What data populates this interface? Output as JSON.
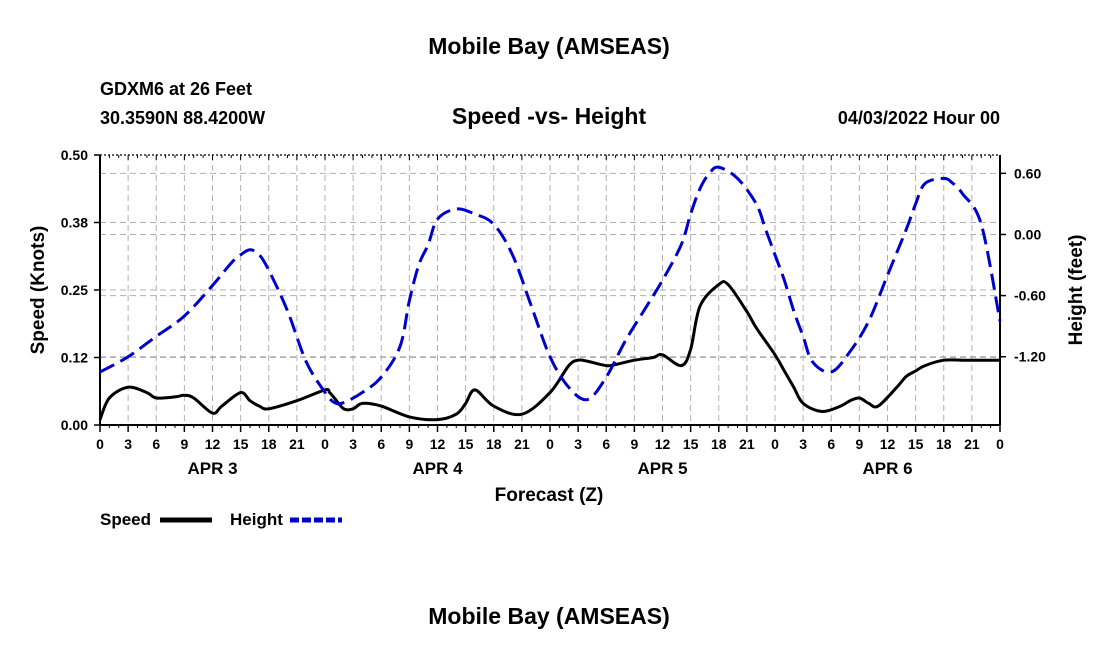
{
  "header": {
    "main_title": "Mobile Bay (AMSEAS)",
    "station": "GDXM6 at 26 Feet",
    "coords": "30.3590N  88.4200W",
    "plot_title": "Speed -vs- Height",
    "run_time": "04/03/2022 Hour 00"
  },
  "footer": {
    "repeat_title": "Mobile Bay (AMSEAS)"
  },
  "chart_data": {
    "type": "line",
    "xlabel": "Forecast (Z)",
    "ylabel": "Speed (Knots)",
    "y2label": "Height (feet)",
    "xlim": [
      0,
      96
    ],
    "ylim": [
      0,
      0.5
    ],
    "y2lim": [
      -1.87,
      0.78
    ],
    "x_tick_step": 3,
    "x_tick_labels": [
      "0",
      "3",
      "6",
      "9",
      "12",
      "15",
      "18",
      "21",
      "0",
      "3",
      "6",
      "9",
      "12",
      "15",
      "18",
      "21",
      "0",
      "3",
      "6",
      "9",
      "12",
      "15",
      "18",
      "21",
      "0",
      "3",
      "6",
      "9",
      "12",
      "15",
      "18",
      "21",
      "0"
    ],
    "y_ticks": [
      "0.00",
      "0.12",
      "0.25",
      "0.38",
      "0.50"
    ],
    "y_tick_values": [
      0,
      0.125,
      0.25,
      0.375,
      0.5
    ],
    "y2_ticks": [
      "-1.20",
      "-0.60",
      "0.00",
      "0.60"
    ],
    "y2_tick_values": [
      -1.2,
      -0.6,
      0.0,
      0.6
    ],
    "day_labels": [
      {
        "label": "APR 3",
        "x": 12
      },
      {
        "label": "APR 4",
        "x": 36
      },
      {
        "label": "APR 5",
        "x": 60
      },
      {
        "label": "APR 6",
        "x": 84
      }
    ],
    "grid": true,
    "series": [
      {
        "name": "Speed",
        "axis": "left",
        "color": "#000000",
        "style": "solid",
        "x": [
          0,
          1,
          3,
          5,
          6,
          8,
          9,
          10,
          12,
          13,
          15,
          16,
          17,
          18,
          21,
          24,
          24.5,
          25,
          26,
          27,
          28,
          30,
          33,
          36,
          38,
          39,
          40,
          42,
          45,
          48,
          50,
          51,
          52,
          54,
          55,
          57,
          59,
          60,
          62,
          63,
          64,
          66,
          67,
          69,
          70,
          72,
          73,
          74,
          75,
          77,
          79,
          80,
          81,
          82,
          83,
          85,
          86,
          87,
          88,
          90,
          92,
          93,
          94,
          95,
          96
        ],
        "values": [
          0.01,
          0.05,
          0.07,
          0.06,
          0.05,
          0.052,
          0.055,
          0.05,
          0.022,
          0.035,
          0.06,
          0.045,
          0.035,
          0.03,
          0.045,
          0.065,
          0.06,
          0.05,
          0.03,
          0.03,
          0.04,
          0.035,
          0.015,
          0.01,
          0.02,
          0.04,
          0.065,
          0.035,
          0.02,
          0.06,
          0.11,
          0.12,
          0.118,
          0.11,
          0.112,
          0.12,
          0.125,
          0.13,
          0.11,
          0.14,
          0.22,
          0.26,
          0.26,
          0.21,
          0.18,
          0.13,
          0.1,
          0.07,
          0.04,
          0.025,
          0.035,
          0.045,
          0.05,
          0.04,
          0.035,
          0.07,
          0.09,
          0.1,
          0.11,
          0.12,
          0.12,
          0.12,
          0.12,
          0.12,
          0.12
        ]
      },
      {
        "name": "Height",
        "axis": "right",
        "color": "#0000cc",
        "style": "dashed",
        "x": [
          0,
          3,
          6,
          9,
          12,
          14,
          15,
          16,
          17,
          18,
          20,
          22,
          24,
          25,
          26,
          28,
          30,
          32,
          33,
          34,
          35,
          36,
          38,
          40,
          42,
          44,
          46,
          48,
          50,
          52,
          54,
          56,
          58,
          60,
          62,
          63,
          64,
          65,
          66,
          68,
          70,
          71,
          72,
          73,
          74,
          75,
          76,
          78,
          80,
          82,
          84,
          86,
          87,
          88,
          90,
          91,
          92,
          94,
          96
        ],
        "values": [
          -1.35,
          -1.2,
          -1.0,
          -0.8,
          -0.5,
          -0.28,
          -0.2,
          -0.15,
          -0.2,
          -0.35,
          -0.75,
          -1.25,
          -1.55,
          -1.65,
          -1.65,
          -1.55,
          -1.4,
          -1.1,
          -0.65,
          -0.3,
          -0.1,
          0.15,
          0.25,
          0.2,
          0.1,
          -0.2,
          -0.7,
          -1.2,
          -1.5,
          -1.62,
          -1.4,
          -1.05,
          -0.75,
          -0.45,
          -0.1,
          0.2,
          0.45,
          0.6,
          0.66,
          0.55,
          0.3,
          0.05,
          -0.2,
          -0.45,
          -0.75,
          -1.0,
          -1.25,
          -1.35,
          -1.15,
          -0.85,
          -0.4,
          0.05,
          0.3,
          0.5,
          0.55,
          0.5,
          0.4,
          0.1,
          -0.85
        ]
      }
    ],
    "legend": [
      {
        "label": "Speed",
        "color": "#000000",
        "style": "solid"
      },
      {
        "label": "Height",
        "color": "#0000cc",
        "style": "dashed"
      }
    ]
  }
}
